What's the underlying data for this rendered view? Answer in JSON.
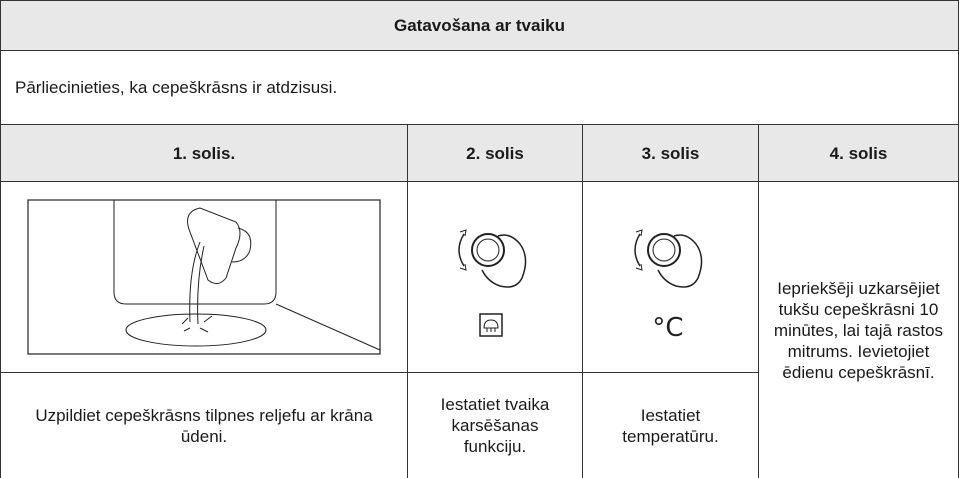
{
  "title": "Gatavošana ar tvaiku",
  "note": "Pārliecinieties, ka cepeškrāsns ir atdzisusi.",
  "steps": [
    {
      "heading": "1. solis.",
      "text": "Uzpildiet cepeškrāsns tilpnes reljefu ar krāna ūdeni."
    },
    {
      "heading": "2. solis",
      "text": "Iestatiet tvaika karsēšanas funkciju."
    },
    {
      "heading": "3. solis",
      "text": "Iestatiet temperatūru.",
      "symbol": "°C"
    },
    {
      "heading": "4. solis",
      "text": "Iepriekšēji uzkarsējiet tukšu cepeškrāsni 10 minūtes, lai tajā rastos mitrums. Ievietojiet ēdienu cepeškrāsnī."
    }
  ]
}
